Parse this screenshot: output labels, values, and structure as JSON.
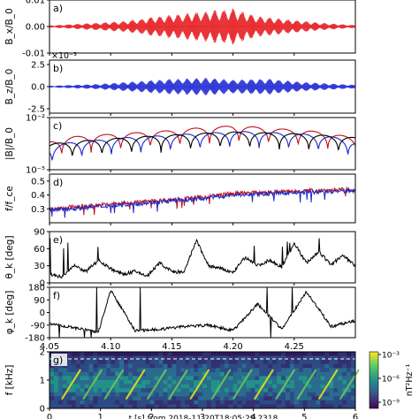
{
  "chart_data": [
    {
      "panel": "a)",
      "type": "line",
      "ylabel": "B_x/B_0",
      "ylim": [
        -0.01,
        0.01
      ],
      "yticks": [
        "0.01",
        "0.00",
        "-0.01"
      ],
      "xlim": [
        4.05,
        4.3
      ],
      "series": [
        {
          "color": "#e8262a",
          "envelope_x": [
            4.05,
            4.08,
            4.11,
            4.14,
            4.16,
            4.18,
            4.2,
            4.22,
            4.24,
            4.27,
            4.3
          ],
          "envelope_y": [
            0.0004,
            0.0012,
            0.002,
            0.004,
            0.005,
            0.006,
            0.007,
            0.004,
            0.003,
            0.0015,
            0.0005
          ]
        }
      ]
    },
    {
      "panel": "b)",
      "type": "line",
      "ylabel": "B_z/B_0",
      "ylim": [
        -0.003,
        0.003
      ],
      "yticks": [
        "2.5",
        "0.0",
        "-2.5"
      ],
      "offset_label": "×10⁻³",
      "xlim": [
        4.05,
        4.3
      ],
      "series": [
        {
          "color": "#2b34d6",
          "envelope_x": [
            4.05,
            4.09,
            4.12,
            4.15,
            4.18,
            4.2,
            4.23,
            4.26,
            4.3
          ],
          "envelope_y": [
            0.0001,
            0.0003,
            0.0006,
            0.0009,
            0.001,
            0.0008,
            0.0009,
            0.0005,
            0.0002
          ]
        }
      ]
    },
    {
      "panel": "c)",
      "type": "line",
      "ylabel": "|B|/B_0",
      "yscale": "log",
      "ylim": [
        1e-05,
        0.01
      ],
      "yticks": [
        "10⁻²",
        "10⁻⁵"
      ],
      "xlim": [
        4.05,
        4.3
      ],
      "series": [
        {
          "color": "#c0121a",
          "x": [
            4.05,
            4.07,
            4.09,
            4.11,
            4.13,
            4.15,
            4.17,
            4.19,
            4.2,
            4.22,
            4.24,
            4.26,
            4.28,
            4.3
          ],
          "y": [
            0.0004,
            0.0008,
            0.001,
            0.0012,
            0.0015,
            0.0018,
            0.0025,
            0.003,
            0.0035,
            0.0028,
            0.0022,
            0.0018,
            0.0012,
            0.0006
          ]
        },
        {
          "color": "#1c28c8",
          "x": [
            4.05,
            4.07,
            4.09,
            4.11,
            4.13,
            4.15,
            4.17,
            4.19,
            4.2,
            4.22,
            4.24,
            4.26,
            4.28,
            4.3
          ],
          "y": [
            0.0002,
            0.0004,
            0.0005,
            0.0007,
            0.0008,
            0.001,
            0.0012,
            0.0014,
            0.0016,
            0.0015,
            0.0013,
            0.0011,
            0.0008,
            0.0004
          ]
        },
        {
          "color": "#000000",
          "x": [
            4.05,
            4.1,
            4.15,
            4.2,
            4.25,
            4.3
          ],
          "y": [
            0.0003,
            0.0006,
            0.001,
            0.0015,
            0.0012,
            0.0007
          ]
        }
      ]
    },
    {
      "panel": "d)",
      "type": "line",
      "ylabel": "f/f_ce",
      "ylim": [
        0.2,
        0.55
      ],
      "yticks": [
        "0.5",
        "0.4",
        "0.3"
      ],
      "xlim": [
        4.05,
        4.3
      ],
      "series": [
        {
          "color": "#c0121a",
          "x": [
            4.05,
            4.08,
            4.11,
            4.14,
            4.17,
            4.2,
            4.23,
            4.26,
            4.3
          ],
          "y": [
            0.3,
            0.32,
            0.34,
            0.36,
            0.38,
            0.41,
            0.42,
            0.43,
            0.44
          ]
        },
        {
          "color": "#1c28c8",
          "x": [
            4.05,
            4.08,
            4.11,
            4.14,
            4.17,
            4.2,
            4.23,
            4.26,
            4.3
          ],
          "y": [
            0.29,
            0.31,
            0.33,
            0.35,
            0.37,
            0.4,
            0.41,
            0.42,
            0.43
          ]
        }
      ]
    },
    {
      "panel": "e)",
      "type": "line",
      "ylabel": "θ_k [deg]",
      "ylim": [
        0,
        90
      ],
      "yticks": [
        "90",
        "60",
        "30",
        "0"
      ],
      "xlim": [
        4.05,
        4.3
      ],
      "series": [
        {
          "color": "#000000",
          "x": [
            4.05,
            4.06,
            4.07,
            4.08,
            4.09,
            4.1,
            4.11,
            4.12,
            4.13,
            4.14,
            4.15,
            4.16,
            4.17,
            4.18,
            4.19,
            4.2,
            4.21,
            4.22,
            4.23,
            4.24,
            4.25,
            4.26,
            4.27,
            4.28,
            4.29,
            4.3
          ],
          "y": [
            15,
            10,
            30,
            20,
            40,
            25,
            15,
            20,
            12,
            35,
            20,
            18,
            75,
            30,
            25,
            18,
            45,
            30,
            40,
            28,
            70,
            35,
            55,
            32,
            48,
            30
          ]
        }
      ]
    },
    {
      "panel": "f)",
      "type": "line",
      "ylabel": "φ_k [deg]",
      "ylim": [
        -180,
        180
      ],
      "yticks": [
        "180",
        "90",
        "0",
        "-90",
        "-180"
      ],
      "xlim": [
        4.05,
        4.3
      ],
      "xticks": [
        "4.05",
        "4.10",
        "4.15",
        "4.20",
        "4.25"
      ],
      "series": [
        {
          "color": "#000000",
          "x": [
            4.05,
            4.07,
            4.09,
            4.1,
            4.12,
            4.14,
            4.16,
            4.18,
            4.2,
            4.22,
            4.24,
            4.26,
            4.28,
            4.3
          ],
          "y": [
            -80,
            -110,
            -140,
            160,
            -130,
            -120,
            -100,
            -90,
            -130,
            60,
            -120,
            150,
            -100,
            -60
          ]
        }
      ]
    },
    {
      "panel": "g)",
      "type": "heatmap",
      "ylabel": "f [kHz]",
      "ylim": [
        0,
        2
      ],
      "yticks": [
        "2",
        "1",
        "0"
      ],
      "xlim": [
        0,
        6
      ],
      "xticks": [
        "0",
        "1",
        "2",
        "3",
        "4",
        "5",
        "6"
      ],
      "colorbar_label": "nT²Hz⁻¹",
      "colorbar_ticks": [
        "10⁻³",
        "10⁻⁶",
        "10⁻⁹"
      ],
      "dashed_line_f": 1.75,
      "bottom_text": "t [s] from 2018-11-20T18:05:29.2318"
    }
  ]
}
